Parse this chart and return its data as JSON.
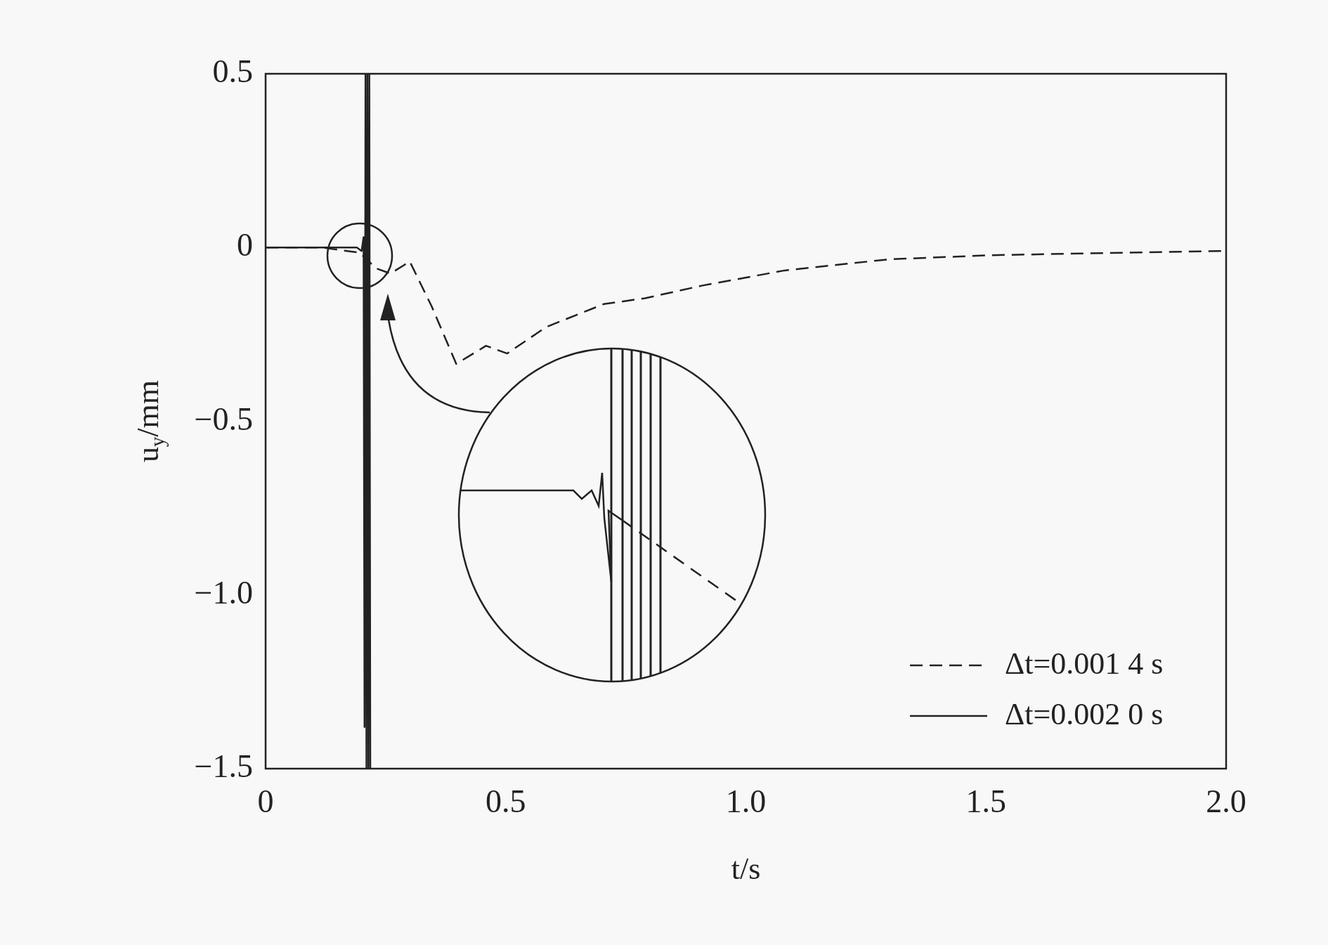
{
  "chart_data": {
    "type": "line",
    "xlabel": "t/s",
    "ylabel": "u$_{y}$/mm",
    "xlim": [
      0,
      2
    ],
    "xticks": [
      0,
      0.5,
      {
        "value": 1,
        "label": "1.0"
      },
      1.5,
      {
        "value": 2,
        "label": "2.0"
      }
    ],
    "ylim": [
      -1.5,
      0.5
    ],
    "yticks": [
      {
        "value": -1.5,
        "label": "−1.5"
      },
      {
        "value": -1,
        "label": "−1.0"
      },
      {
        "value": -0.5,
        "label": "−0.5"
      },
      0,
      0.5
    ],
    "grid": false,
    "legend": "bottom right",
    "marker": "none",
    "series": [
      {
        "name": "Δt=0.001 4 s",
        "color": "#222222",
        "line_style": "dashed",
        "x": [
          0,
          0.116,
          0.196,
          0.23,
          0.26,
          0.289,
          0.3,
          0.346,
          0.397,
          0.459,
          0.503,
          0.584,
          0.704,
          0.79,
          0.908,
          1.081,
          1.298,
          1.515,
          1.99
        ],
        "values": [
          0,
          0,
          -0.015,
          -0.06,
          -0.075,
          -0.05,
          -0.04,
          -0.17,
          -0.335,
          -0.283,
          -0.305,
          -0.229,
          -0.163,
          -0.146,
          -0.11,
          -0.066,
          -0.034,
          -0.022,
          -0.01
        ]
      },
      {
        "name": "Δt=0.002 0 s",
        "color": "#222222",
        "line_style": "solid",
        "x": [
          0,
          0.19,
          0.2,
          0.204,
          0.206,
          0.208,
          0.21,
          0.212,
          0.214,
          0.216,
          0.218
        ],
        "values": [
          0,
          0,
          -0.01,
          0.03,
          -1.38,
          0.5,
          -1.5,
          0.5,
          -1.5,
          0.5,
          -1.5
        ]
      }
    ]
  }
}
